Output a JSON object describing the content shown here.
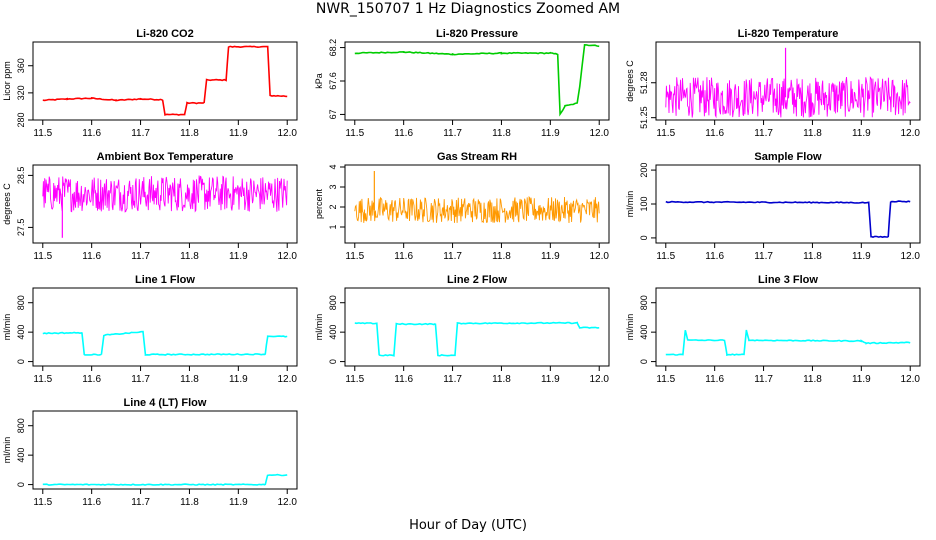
{
  "figure": {
    "title": "NWR_150707  1 Hz Diagnostics Zoomed AM",
    "xlabel": "Hour of Day (UTC)"
  },
  "chart_data": [
    {
      "type": "line",
      "title": "Li-820 CO2",
      "ylabel": "Licor ppm",
      "xlim": [
        11.48,
        12.02
      ],
      "ylim": [
        280,
        395
      ],
      "yticks": [
        280,
        320,
        360
      ],
      "xticks": [
        11.5,
        11.6,
        11.7,
        11.8,
        11.9,
        12.0
      ],
      "color": "#ff0000",
      "series": [
        {
          "x": [
            11.5,
            11.55,
            11.6,
            11.65,
            11.7,
            11.745,
            11.75,
            11.79,
            11.795,
            11.83,
            11.835,
            11.875,
            11.88,
            11.96,
            11.965,
            12.0
          ],
          "values": [
            309,
            311,
            312,
            309,
            311,
            310,
            288,
            288,
            305,
            305,
            339,
            339,
            388,
            388,
            316,
            315
          ]
        }
      ]
    },
    {
      "type": "line",
      "title": "Li-820 Pressure",
      "ylabel": "kPa",
      "xlim": [
        11.48,
        12.02
      ],
      "ylim": [
        66.9,
        68.3
      ],
      "yticks": [
        67.0,
        67.6,
        68.2
      ],
      "xticks": [
        11.5,
        11.6,
        11.7,
        11.8,
        11.9,
        12.0
      ],
      "color": "#00cc00",
      "series": [
        {
          "x": [
            11.5,
            11.6,
            11.7,
            11.8,
            11.9,
            11.915,
            11.92,
            11.93,
            11.955,
            11.96,
            11.97,
            12.0
          ],
          "values": [
            68.1,
            68.12,
            68.08,
            68.1,
            68.1,
            68.08,
            67.0,
            67.15,
            67.2,
            67.5,
            68.25,
            68.23
          ]
        }
      ]
    },
    {
      "type": "line",
      "title": "Li-820 Temperature",
      "ylabel": "degrees C",
      "xlim": [
        11.48,
        12.02
      ],
      "ylim": [
        51.248,
        51.315
      ],
      "yticks": [
        51.25,
        51.28
      ],
      "xticks": [
        11.5,
        11.6,
        11.7,
        11.8,
        11.9,
        12.0
      ],
      "color": "#ff00ff",
      "band": [
        51.25,
        51.285
      ],
      "spike": {
        "x": 11.745,
        "value": 51.31
      }
    },
    {
      "type": "line",
      "title": "Ambient Box Temperature",
      "ylabel": "degrees C",
      "xlim": [
        11.48,
        12.02
      ],
      "ylim": [
        27.2,
        28.7
      ],
      "yticks": [
        27.5,
        28.5
      ],
      "xticks": [
        11.5,
        11.6,
        11.7,
        11.8,
        11.9,
        12.0
      ],
      "color": "#ff00ff",
      "band": [
        27.8,
        28.5
      ],
      "spike": {
        "x": 11.54,
        "value": 27.3
      }
    },
    {
      "type": "line",
      "title": "Gas Stream RH",
      "ylabel": "percent",
      "xlim": [
        11.48,
        12.02
      ],
      "ylim": [
        0.2,
        4.1
      ],
      "yticks": [
        1,
        2,
        3,
        4
      ],
      "xticks": [
        11.5,
        11.6,
        11.7,
        11.8,
        11.9,
        12.0
      ],
      "color": "#ff9900",
      "band": [
        1.2,
        2.5
      ],
      "spike": {
        "x": 11.54,
        "value": 3.8
      }
    },
    {
      "type": "line",
      "title": "Sample Flow",
      "ylabel": "ml/min",
      "xlim": [
        11.48,
        12.02
      ],
      "ylim": [
        -15,
        215
      ],
      "yticks": [
        0,
        100,
        200
      ],
      "xticks": [
        11.5,
        11.6,
        11.7,
        11.8,
        11.9,
        12.0
      ],
      "color": "#0000cc",
      "series": [
        {
          "x": [
            11.5,
            11.7,
            11.915,
            11.92,
            11.955,
            11.96,
            12.0
          ],
          "values": [
            106,
            105,
            104,
            3,
            3,
            108,
            107
          ]
        }
      ]
    },
    {
      "type": "line",
      "title": "Line 1 Flow",
      "ylabel": "ml/min",
      "xlim": [
        11.48,
        12.02
      ],
      "ylim": [
        -60,
        1000
      ],
      "yticks": [
        0,
        400,
        800
      ],
      "xticks": [
        11.5,
        11.6,
        11.7,
        11.8,
        11.9,
        12.0
      ],
      "color": "#00ffff",
      "series": [
        {
          "x": [
            11.5,
            11.58,
            11.585,
            11.62,
            11.625,
            11.705,
            11.71,
            11.955,
            11.96,
            12.0
          ],
          "values": [
            385,
            392,
            95,
            95,
            358,
            405,
            95,
            100,
            345,
            340
          ]
        }
      ]
    },
    {
      "type": "line",
      "title": "Line 2 Flow",
      "ylabel": "ml/min",
      "xlim": [
        11.48,
        12.02
      ],
      "ylim": [
        -60,
        1000
      ],
      "yticks": [
        0,
        400,
        800
      ],
      "xticks": [
        11.5,
        11.6,
        11.7,
        11.8,
        11.9,
        12.0
      ],
      "color": "#00ffff",
      "series": [
        {
          "x": [
            11.5,
            11.545,
            11.55,
            11.58,
            11.585,
            11.665,
            11.67,
            11.705,
            11.71,
            11.955,
            11.96,
            12.0
          ],
          "values": [
            520,
            520,
            85,
            85,
            510,
            510,
            85,
            85,
            520,
            525,
            460,
            460
          ]
        }
      ]
    },
    {
      "type": "line",
      "title": "Line 3 Flow",
      "ylabel": "ml/min",
      "xlim": [
        11.48,
        12.02
      ],
      "ylim": [
        -60,
        1000
      ],
      "yticks": [
        0,
        400,
        800
      ],
      "xticks": [
        11.5,
        11.6,
        11.7,
        11.8,
        11.9,
        12.0
      ],
      "color": "#00ffff",
      "series": [
        {
          "x": [
            11.5,
            11.535,
            11.54,
            11.545,
            11.62,
            11.625,
            11.66,
            11.665,
            11.67,
            11.9,
            11.91,
            12.0
          ],
          "values": [
            95,
            95,
            430,
            290,
            290,
            95,
            95,
            430,
            290,
            280,
            250,
            260
          ]
        }
      ]
    },
    {
      "type": "line",
      "title": "Line 4 (LT) Flow",
      "ylabel": "ml/min",
      "xlim": [
        11.48,
        12.02
      ],
      "ylim": [
        -60,
        1000
      ],
      "yticks": [
        0,
        400,
        800
      ],
      "xticks": [
        11.5,
        11.6,
        11.7,
        11.8,
        11.9,
        12.0
      ],
      "color": "#00ffff",
      "series": [
        {
          "x": [
            11.5,
            11.955,
            11.96,
            12.0
          ],
          "values": [
            0,
            0,
            130,
            130
          ]
        }
      ]
    }
  ]
}
